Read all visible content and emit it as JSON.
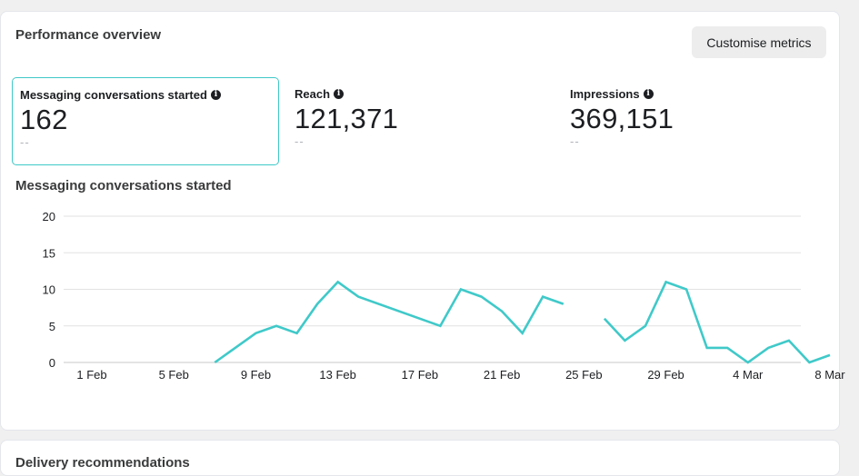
{
  "panel": {
    "title": "Performance overview",
    "customise_label": "Customise metrics"
  },
  "metrics": [
    {
      "label": "Messaging conversations started",
      "value": "162",
      "delta": "--",
      "selected": true
    },
    {
      "label": "Reach",
      "value": "121,371",
      "delta": "--",
      "selected": false
    },
    {
      "label": "Impressions",
      "value": "369,151",
      "delta": "--",
      "selected": false
    }
  ],
  "next_panel": {
    "title": "Delivery recommendations"
  },
  "colors": {
    "accent": "#3fc8c8",
    "line": "#40c9c9"
  },
  "chart_data": {
    "type": "line",
    "title": "Messaging conversations started",
    "xlabel": "",
    "ylabel": "",
    "ylim": [
      0,
      20
    ],
    "yticks": [
      0,
      5,
      10,
      15,
      20
    ],
    "x_range": [
      "2024-02-01",
      "2024-03-08"
    ],
    "xtick_labels": [
      "1 Feb",
      "5 Feb",
      "9 Feb",
      "13 Feb",
      "17 Feb",
      "21 Feb",
      "25 Feb",
      "29 Feb",
      "4 Mar",
      "8 Mar"
    ],
    "xticks": [
      "2024-02-01",
      "2024-02-05",
      "2024-02-09",
      "2024-02-13",
      "2024-02-17",
      "2024-02-21",
      "2024-02-25",
      "2024-02-29",
      "2024-03-04",
      "2024-03-08"
    ],
    "grid": true,
    "series": [
      {
        "segments": [
          [
            [
              "2024-02-07",
              0
            ],
            [
              "2024-02-09",
              4
            ],
            [
              "2024-02-10",
              5
            ],
            [
              "2024-02-11",
              4
            ],
            [
              "2024-02-12",
              8
            ],
            [
              "2024-02-13",
              11
            ],
            [
              "2024-02-14",
              9
            ],
            [
              "2024-02-18",
              5
            ],
            [
              "2024-02-19",
              10
            ],
            [
              "2024-02-20",
              9
            ],
            [
              "2024-02-21",
              7
            ],
            [
              "2024-02-22",
              4
            ],
            [
              "2024-02-23",
              9
            ],
            [
              "2024-02-24",
              8
            ]
          ],
          [
            [
              "2024-02-26",
              6
            ],
            [
              "2024-02-27",
              3
            ],
            [
              "2024-02-28",
              5
            ],
            [
              "2024-02-29",
              11
            ],
            [
              "2024-03-01",
              10
            ],
            [
              "2024-03-02",
              2
            ],
            [
              "2024-03-03",
              2
            ],
            [
              "2024-03-04",
              0
            ],
            [
              "2024-03-05",
              2
            ],
            [
              "2024-03-06",
              3
            ],
            [
              "2024-03-07",
              0
            ],
            [
              "2024-03-08",
              1
            ]
          ]
        ]
      }
    ]
  }
}
